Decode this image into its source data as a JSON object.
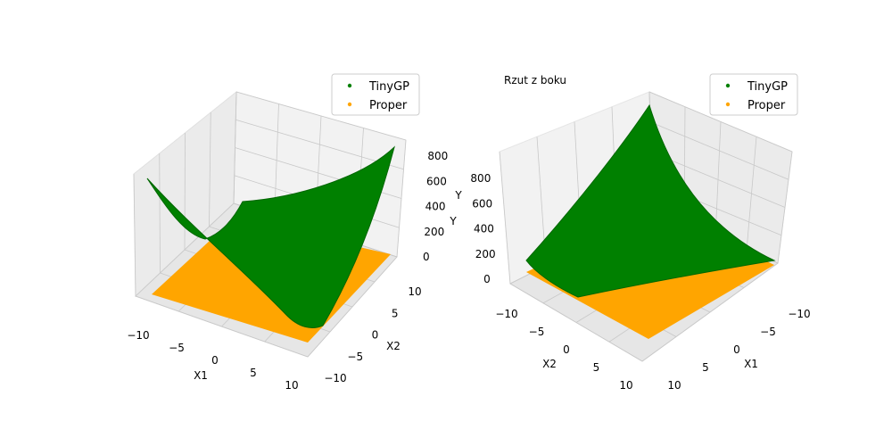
{
  "chart_data": [
    {
      "type": "scatter3d",
      "title": "",
      "xlabel": "X1",
      "ylabel": "X2",
      "zlabel": "Y",
      "x_ticks": [
        -10,
        -5,
        0,
        5,
        10
      ],
      "y_ticks": [
        -10,
        -5,
        0,
        5,
        10
      ],
      "z_ticks": [
        0,
        200,
        400,
        600,
        800
      ],
      "z_ticks_extra": [],
      "xlim": [
        -10,
        10
      ],
      "ylim": [
        -10,
        10
      ],
      "zlim": [
        0,
        900
      ],
      "grid": true,
      "legend_position": "top-right",
      "series": [
        {
          "name": "TinyGP",
          "color": "#008000"
        },
        {
          "name": "Proper",
          "color": "#ffa500"
        }
      ],
      "surface_corners_tinygp": {
        "x1_min_x2_min": 700,
        "x1_max_x2_min": 60,
        "x1_min_x2_max": 260,
        "x1_max_x2_max": 880
      }
    },
    {
      "type": "scatter3d",
      "title": "Rzut z boku",
      "xlabel": "X1",
      "ylabel": "X2",
      "zlabel": "Y",
      "x_ticks": [
        -10,
        -5,
        0,
        5,
        10
      ],
      "y_ticks": [
        -10,
        -5,
        0,
        5,
        10
      ],
      "z_ticks": [
        0,
        200,
        400,
        600,
        800
      ],
      "xlim": [
        -10,
        10
      ],
      "ylim": [
        -10,
        10
      ],
      "zlim": [
        0,
        900
      ],
      "grid": true,
      "legend_position": "top-right",
      "series": [
        {
          "name": "TinyGP",
          "color": "#008000"
        },
        {
          "name": "Proper",
          "color": "#ffa500"
        }
      ]
    }
  ],
  "labels": {
    "left_ylabel_dup": "Y"
  }
}
